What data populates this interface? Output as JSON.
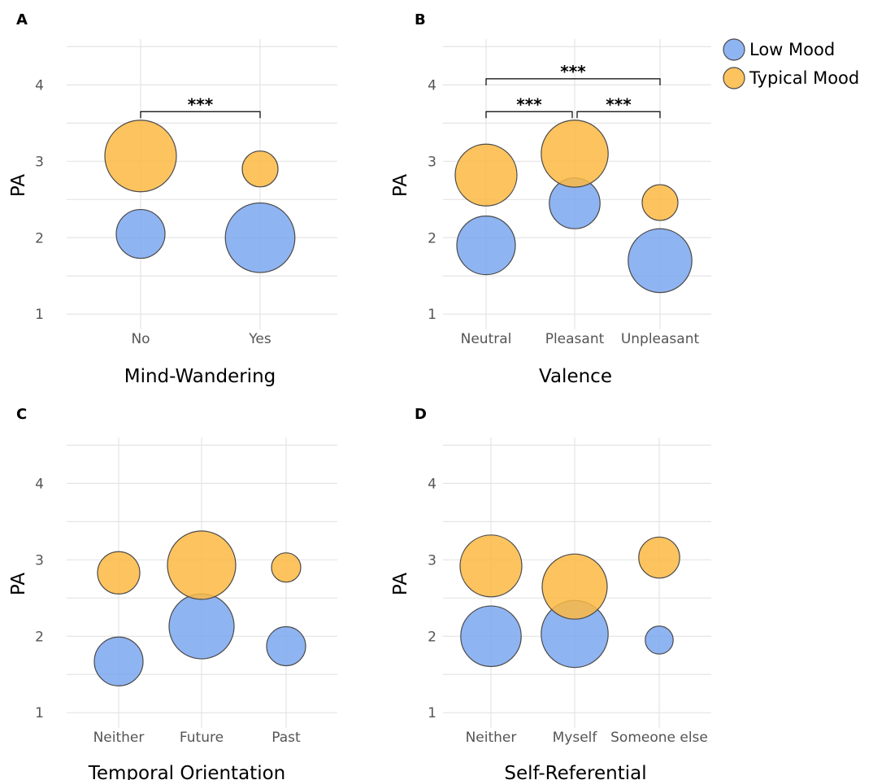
{
  "chart_data": [
    {
      "type": "scatter",
      "panel": "A",
      "xlabel": "Mind-Wandering",
      "ylabel": "PA",
      "categories": [
        "No",
        "Yes"
      ],
      "yticks": [
        1,
        2,
        3,
        4
      ],
      "ylim": [
        0.8,
        4.6
      ],
      "grid": true,
      "series": [
        {
          "name": "Low Mood",
          "values": [
            2.05,
            2.0
          ],
          "size": [
            0.4,
            0.72
          ]
        },
        {
          "name": "Typical Mood",
          "values": [
            3.07,
            2.9
          ],
          "size": [
            0.75,
            0.2
          ]
        }
      ],
      "significance": [
        {
          "from": "No",
          "to": "Yes",
          "label": "***"
        }
      ]
    },
    {
      "type": "scatter",
      "panel": "B",
      "xlabel": "Valence",
      "ylabel": "PA",
      "categories": [
        "Neutral",
        "Pleasant",
        "Unpleasant"
      ],
      "yticks": [
        1,
        2,
        3,
        4
      ],
      "ylim": [
        0.8,
        4.6
      ],
      "grid": true,
      "series": [
        {
          "name": "Low Mood",
          "values": [
            1.9,
            2.45,
            1.7
          ],
          "size": [
            0.55,
            0.43,
            0.63
          ]
        },
        {
          "name": "Typical Mood",
          "values": [
            2.82,
            3.1,
            2.46
          ],
          "size": [
            0.6,
            0.68,
            0.2
          ]
        }
      ],
      "significance": [
        {
          "from": "Neutral",
          "to": "Unpleasant",
          "label": "***"
        },
        {
          "from": "Neutral",
          "to": "Pleasant",
          "label": "***"
        },
        {
          "from": "Pleasant",
          "to": "Unpleasant",
          "label": "***"
        }
      ]
    },
    {
      "type": "scatter",
      "panel": "C",
      "xlabel": "Temporal Orientation",
      "ylabel": "PA",
      "categories": [
        "Neither",
        "Future",
        "Past"
      ],
      "yticks": [
        1,
        2,
        3,
        4
      ],
      "ylim": [
        0.8,
        4.6
      ],
      "grid": true,
      "series": [
        {
          "name": "Low Mood",
          "values": [
            1.67,
            2.13,
            1.87
          ],
          "size": [
            0.4,
            0.65,
            0.25
          ]
        },
        {
          "name": "Typical Mood",
          "values": [
            2.83,
            2.93,
            2.9
          ],
          "size": [
            0.3,
            0.7,
            0.1
          ]
        }
      ],
      "significance": []
    },
    {
      "type": "scatter",
      "panel": "D",
      "xlabel": "Self-Referential",
      "ylabel": "PA",
      "categories": [
        "Neither",
        "Myself",
        "Someone else"
      ],
      "yticks": [
        1,
        2,
        3,
        4
      ],
      "ylim": [
        0.8,
        4.6
      ],
      "grid": true,
      "series": [
        {
          "name": "Low Mood",
          "values": [
            2.0,
            2.03,
            1.95
          ],
          "size": [
            0.58,
            0.68,
            0.08
          ]
        },
        {
          "name": "Typical Mood",
          "values": [
            2.92,
            2.65,
            3.03
          ],
          "size": [
            0.6,
            0.65,
            0.28
          ]
        }
      ],
      "significance": []
    }
  ],
  "legend": {
    "placement": "top-right",
    "items": [
      {
        "label": "Low Mood",
        "color": "#7ba7f0"
      },
      {
        "label": "Typical Mood",
        "color": "#fbb943"
      }
    ]
  },
  "colors": {
    "Low Mood": "#7ba7f0",
    "Typical Mood": "#fbb943"
  }
}
